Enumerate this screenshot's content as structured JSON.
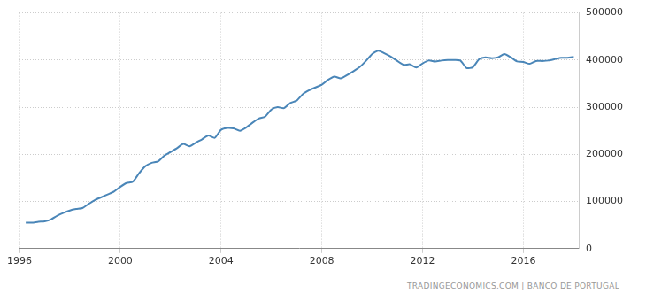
{
  "chart_data": {
    "type": "line",
    "source": "TRADINGECONOMICS.COM | BANCO DE PORTUGAL",
    "x": [
      1996.25,
      1996.5,
      1996.75,
      1997.0,
      1997.25,
      1997.5,
      1997.75,
      1998.0,
      1998.25,
      1998.5,
      1998.75,
      1999.0,
      1999.25,
      1999.5,
      1999.75,
      2000.0,
      2000.25,
      2000.5,
      2000.75,
      2001.0,
      2001.25,
      2001.5,
      2001.75,
      2002.0,
      2002.25,
      2002.5,
      2002.75,
      2003.0,
      2003.25,
      2003.5,
      2003.75,
      2004.0,
      2004.25,
      2004.5,
      2004.75,
      2005.0,
      2005.25,
      2005.5,
      2005.75,
      2006.0,
      2006.25,
      2006.5,
      2006.75,
      2007.0,
      2007.25,
      2007.5,
      2007.75,
      2008.0,
      2008.25,
      2008.5,
      2008.75,
      2009.0,
      2009.25,
      2009.5,
      2009.75,
      2010.0,
      2010.25,
      2010.5,
      2010.75,
      2011.0,
      2011.25,
      2011.5,
      2011.75,
      2012.0,
      2012.25,
      2012.5,
      2012.75,
      2013.0,
      2013.25,
      2013.5,
      2013.75,
      2014.0,
      2014.25,
      2014.5,
      2014.75,
      2015.0,
      2015.25,
      2015.5,
      2015.75,
      2016.0,
      2016.25,
      2016.5,
      2016.75,
      2017.0,
      2017.25,
      2017.5,
      2017.75,
      2018.0
    ],
    "values": [
      55000,
      55000,
      57000,
      58000,
      62000,
      70000,
      76000,
      81000,
      84000,
      86000,
      95000,
      103000,
      109000,
      115000,
      121000,
      131000,
      139000,
      142000,
      160000,
      175000,
      182000,
      185000,
      197000,
      205000,
      213000,
      222000,
      217000,
      225000,
      232000,
      240000,
      235000,
      252000,
      256000,
      255000,
      250000,
      257000,
      267000,
      276000,
      280000,
      295000,
      300000,
      298000,
      309000,
      314000,
      328000,
      336000,
      342000,
      348000,
      358000,
      365000,
      361000,
      368000,
      376000,
      385000,
      398000,
      413000,
      420000,
      414000,
      407000,
      398000,
      390000,
      391000,
      384000,
      393000,
      399000,
      397000,
      399000,
      400000,
      400000,
      399000,
      383000,
      385000,
      402000,
      406000,
      404000,
      406000,
      413000,
      406000,
      397000,
      396000,
      392000,
      398000,
      398000,
      399000,
      402000,
      405000,
      405000,
      407000
    ],
    "color": "#4a86b8",
    "xlim": [
      1996,
      2018.2
    ],
    "xticks": [
      1996,
      2000,
      2004,
      2008,
      2012,
      2016
    ],
    "ylim": [
      0,
      500000
    ],
    "yticks": [
      0,
      100000,
      200000,
      300000,
      400000,
      500000
    ],
    "grid": true
  }
}
